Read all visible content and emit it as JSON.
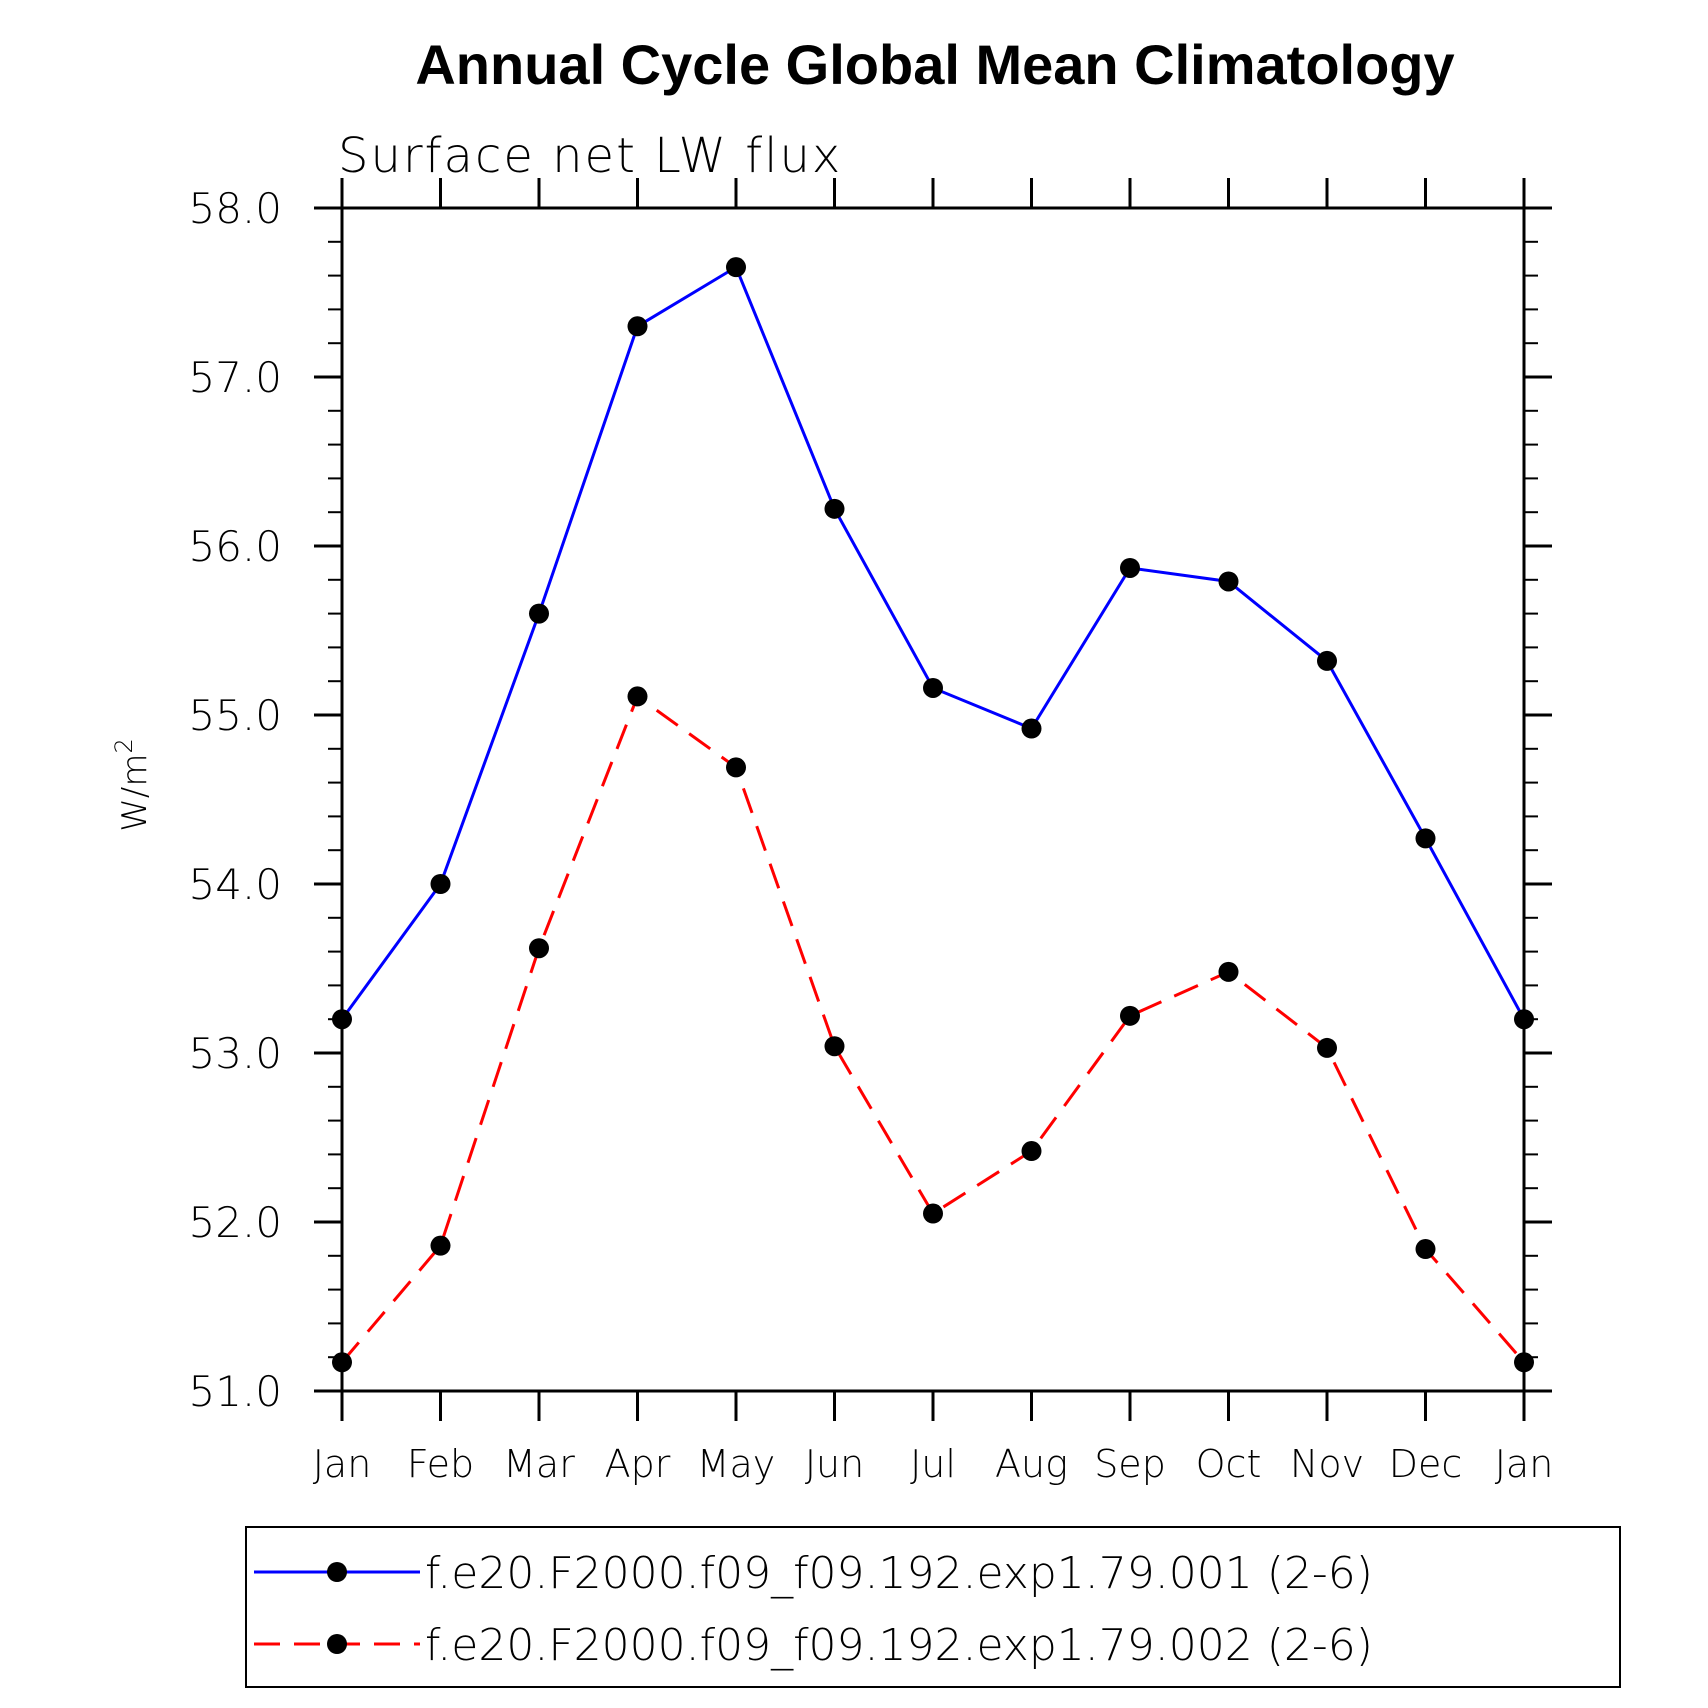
{
  "chart_data": {
    "type": "line",
    "title": "Annual Cycle Global Mean Climatology",
    "subtitle": "Surface net LW flux",
    "ylabel": "W/m",
    "ylabel_superscript": "2",
    "ylim": [
      51.0,
      58.0
    ],
    "yticks": [
      "51.0",
      "52.0",
      "53.0",
      "54.0",
      "55.0",
      "56.0",
      "57.0",
      "58.0"
    ],
    "categories": [
      "Jan",
      "Feb",
      "Mar",
      "Apr",
      "May",
      "Jun",
      "Jul",
      "Aug",
      "Sep",
      "Oct",
      "Nov",
      "Dec",
      "Jan"
    ],
    "series": [
      {
        "name": "f.e20.F2000.f09_f09.192.exp1.79.001 (2-6)",
        "color": "#0000ff",
        "dash": "solid",
        "values": [
          53.2,
          54.0,
          55.6,
          57.3,
          57.65,
          56.22,
          55.16,
          54.92,
          55.87,
          55.79,
          55.32,
          54.27,
          53.2
        ]
      },
      {
        "name": "f.e20.F2000.f09_f09.192.exp1.79.002 (2-6)",
        "color": "#ff0000",
        "dash": "dashed",
        "values": [
          51.17,
          51.86,
          53.62,
          55.11,
          54.69,
          53.04,
          52.05,
          52.42,
          53.22,
          53.48,
          53.03,
          51.84,
          51.17
        ]
      }
    ],
    "legend_position": "bottom",
    "marker": "filled-circle",
    "marker_color": "#000000"
  }
}
